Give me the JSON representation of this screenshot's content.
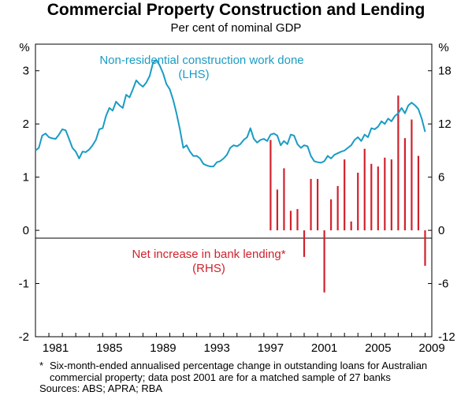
{
  "header": {
    "title": "Commercial Property Construction and Lending",
    "subtitle": "Per cent of nominal GDP"
  },
  "chart_data": {
    "type": "line",
    "title": "Commercial Property Construction and Lending",
    "subtitle": "Per cent of nominal GDP",
    "left_axis": {
      "unit": "%",
      "ylim": [
        -2,
        3.5
      ],
      "ticks": [
        -2,
        -1,
        0,
        1,
        2,
        3
      ]
    },
    "right_axis": {
      "unit": "%",
      "ylim": [
        -12,
        21
      ],
      "ticks": [
        -12,
        -6,
        0,
        6,
        12,
        18
      ]
    },
    "x_axis": {
      "xlim": [
        1980,
        2009.5
      ],
      "tick_labels": [
        "1981",
        "1985",
        "1989",
        "1993",
        "1997",
        "2001",
        "2005",
        "2009"
      ]
    },
    "grid": false,
    "series": [
      {
        "name": "Non-residential construction work done",
        "axis_label": "(LHS)",
        "type": "line",
        "color": "#1a9cc4",
        "x": [
          1980.0,
          1980.25,
          1980.5,
          1980.75,
          1981.0,
          1981.25,
          1981.5,
          1981.75,
          1982.0,
          1982.25,
          1982.5,
          1982.75,
          1983.0,
          1983.25,
          1983.5,
          1983.75,
          1984.0,
          1984.25,
          1984.5,
          1984.75,
          1985.0,
          1985.25,
          1985.5,
          1985.75,
          1986.0,
          1986.25,
          1986.5,
          1986.75,
          1987.0,
          1987.25,
          1987.5,
          1987.75,
          1988.0,
          1988.25,
          1988.5,
          1988.75,
          1989.0,
          1989.25,
          1989.5,
          1989.75,
          1990.0,
          1990.25,
          1990.5,
          1990.75,
          1991.0,
          1991.25,
          1991.5,
          1991.75,
          1992.0,
          1992.25,
          1992.5,
          1992.75,
          1993.0,
          1993.25,
          1993.5,
          1993.75,
          1994.0,
          1994.25,
          1994.5,
          1994.75,
          1995.0,
          1995.25,
          1995.5,
          1995.75,
          1996.0,
          1996.25,
          1996.5,
          1996.75,
          1997.0,
          1997.25,
          1997.5,
          1997.75,
          1998.0,
          1998.25,
          1998.5,
          1998.75,
          1999.0,
          1999.25,
          1999.5,
          1999.75,
          2000.0,
          2000.25,
          2000.5,
          2000.75,
          2001.0,
          2001.25,
          2001.5,
          2001.75,
          2002.0,
          2002.25,
          2002.5,
          2002.75,
          2003.0,
          2003.25,
          2003.5,
          2003.75,
          2004.0,
          2004.25,
          2004.5,
          2004.75,
          2005.0,
          2005.25,
          2005.5,
          2005.75,
          2006.0,
          2006.25,
          2006.5,
          2006.75,
          2007.0,
          2007.25,
          2007.5,
          2007.75,
          2008.0,
          2008.25,
          2008.5,
          2008.75,
          2009.0
        ],
        "values": [
          1.5,
          1.55,
          1.78,
          1.82,
          1.75,
          1.73,
          1.72,
          1.8,
          1.9,
          1.88,
          1.72,
          1.55,
          1.48,
          1.35,
          1.48,
          1.47,
          1.52,
          1.6,
          1.7,
          1.9,
          1.92,
          2.15,
          2.3,
          2.25,
          2.42,
          2.35,
          2.3,
          2.55,
          2.5,
          2.65,
          2.82,
          2.75,
          2.7,
          2.78,
          2.9,
          3.15,
          3.2,
          3.1,
          2.95,
          2.75,
          2.65,
          2.45,
          2.2,
          1.9,
          1.55,
          1.6,
          1.48,
          1.4,
          1.4,
          1.35,
          1.25,
          1.22,
          1.2,
          1.2,
          1.28,
          1.3,
          1.35,
          1.42,
          1.55,
          1.6,
          1.58,
          1.62,
          1.7,
          1.75,
          1.92,
          1.72,
          1.65,
          1.7,
          1.72,
          1.68,
          1.8,
          1.82,
          1.78,
          1.6,
          1.68,
          1.62,
          1.8,
          1.78,
          1.62,
          1.55,
          1.6,
          1.58,
          1.4,
          1.3,
          1.28,
          1.27,
          1.3,
          1.4,
          1.35,
          1.42,
          1.45,
          1.48,
          1.5,
          1.55,
          1.6,
          1.7,
          1.75,
          1.68,
          1.8,
          1.75,
          1.92,
          1.9,
          1.95,
          2.05,
          2.0,
          2.1,
          2.05,
          2.15,
          2.2,
          2.3,
          2.2,
          2.35,
          2.4,
          2.35,
          2.28,
          2.1,
          1.85
        ]
      },
      {
        "name": "Net increase in bank lending*",
        "axis_label": "(RHS)",
        "type": "bar",
        "color": "#d0222c",
        "x": [
          1997.5,
          1998.0,
          1998.5,
          1999.0,
          1999.5,
          2000.0,
          2000.5,
          2001.0,
          2001.5,
          2002.0,
          2002.5,
          2003.0,
          2003.5,
          2004.0,
          2004.5,
          2005.0,
          2005.5,
          2006.0,
          2006.5,
          2007.0,
          2007.5,
          2008.0,
          2008.5,
          2009.0
        ],
        "values": [
          10.2,
          4.6,
          7.0,
          2.2,
          2.4,
          -3.0,
          5.8,
          5.8,
          -7.0,
          3.5,
          5.0,
          8.0,
          1.0,
          6.5,
          9.2,
          7.5,
          7.2,
          8.2,
          8.0,
          15.2,
          10.4,
          12.5,
          8.4,
          -4.0
        ]
      }
    ],
    "annotations": [
      "Non-residential construction work done",
      "(LHS)",
      "Net increase in bank lending*",
      "(RHS)"
    ]
  },
  "notes": {
    "footnote_mark": "*",
    "footnote": "Six-month-ended annualised percentage change in outstanding loans for Australian commercial property; data post 2001 are for a matched sample of 27 banks",
    "sources": "Sources: ABS; APRA; RBA"
  }
}
